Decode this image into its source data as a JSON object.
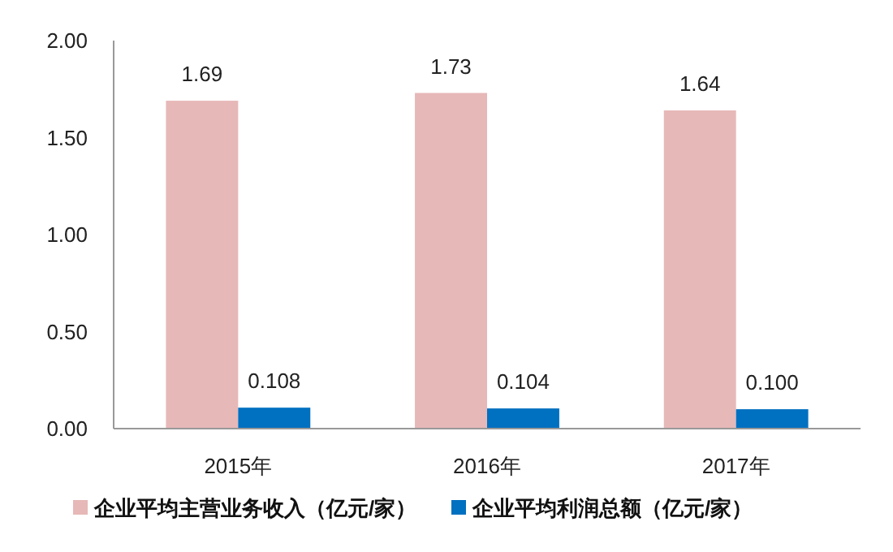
{
  "chart_data": {
    "type": "bar",
    "categories": [
      "2015年",
      "2016年",
      "2017年"
    ],
    "series": [
      {
        "name": "企业平均主营业务收入（亿元/家）",
        "color": "#e6b8b7",
        "values": [
          1.69,
          1.73,
          1.64
        ],
        "value_labels": [
          "1.69",
          "1.73",
          "1.64"
        ]
      },
      {
        "name": "企业平均利润总额（亿元/家）",
        "color": "#0070c0",
        "values": [
          0.108,
          0.104,
          0.1
        ],
        "value_labels": [
          "0.108",
          "0.104",
          "0.100"
        ]
      }
    ],
    "ylim": [
      0,
      2
    ],
    "yticks": [
      {
        "value": 0,
        "label": "0.00"
      },
      {
        "value": 0.5,
        "label": "0.50"
      },
      {
        "value": 1,
        "label": "1.00"
      },
      {
        "value": 1.5,
        "label": "1.50"
      },
      {
        "value": 2,
        "label": "2.00"
      }
    ],
    "grid": false,
    "legend": "bottom"
  }
}
